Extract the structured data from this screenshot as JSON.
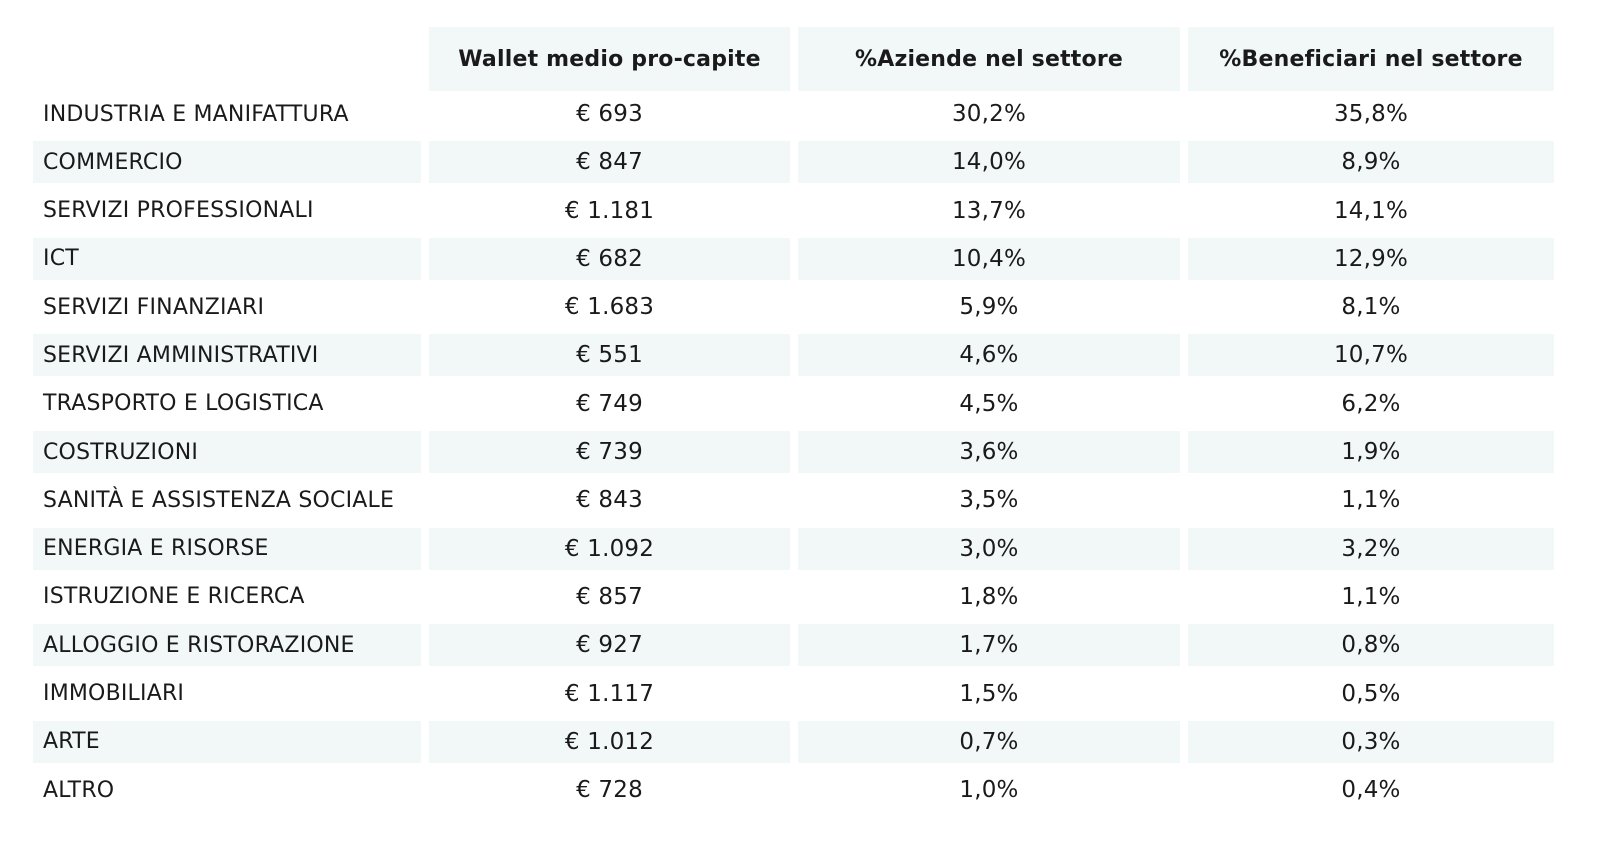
{
  "table": {
    "headers": [
      "",
      "Wallet medio pro-capite",
      "%Aziende nel settore",
      "%Beneficiari nel settore"
    ],
    "rows": [
      {
        "settore": "INDUSTRIA E MANIFATTURA",
        "wallet": "€ 693",
        "aziende": "30,2%",
        "beneficiari": "35,8%"
      },
      {
        "settore": "COMMERCIO",
        "wallet": "€ 847",
        "aziende": "14,0%",
        "beneficiari": "8,9%"
      },
      {
        "settore": "SERVIZI PROFESSIONALI",
        "wallet": "€ 1.181",
        "aziende": "13,7%",
        "beneficiari": "14,1%"
      },
      {
        "settore": "ICT",
        "wallet": "€ 682",
        "aziende": "10,4%",
        "beneficiari": "12,9%"
      },
      {
        "settore": "SERVIZI FINANZIARI",
        "wallet": "€ 1.683",
        "aziende": "5,9%",
        "beneficiari": "8,1%"
      },
      {
        "settore": "SERVIZI AMMINISTRATIVI",
        "wallet": "€ 551",
        "aziende": "4,6%",
        "beneficiari": "10,7%"
      },
      {
        "settore": "TRASPORTO E LOGISTICA",
        "wallet": "€ 749",
        "aziende": "4,5%",
        "beneficiari": "6,2%"
      },
      {
        "settore": "COSTRUZIONI",
        "wallet": "€ 739",
        "aziende": "3,6%",
        "beneficiari": "1,9%"
      },
      {
        "settore": "SANITÀ E ASSISTENZA SOCIALE",
        "wallet": "€ 843",
        "aziende": "3,5%",
        "beneficiari": "1,1%"
      },
      {
        "settore": "ENERGIA E RISORSE",
        "wallet": "€ 1.092",
        "aziende": "3,0%",
        "beneficiari": "3,2%"
      },
      {
        "settore": "ISTRUZIONE E RICERCA",
        "wallet": "€ 857",
        "aziende": "1,8%",
        "beneficiari": "1,1%"
      },
      {
        "settore": "ALLOGGIO E RISTORAZIONE",
        "wallet": "€ 927",
        "aziende": "1,7%",
        "beneficiari": "0,8%"
      },
      {
        "settore": "IMMOBILIARI",
        "wallet": "€ 1.117",
        "aziende": "1,5%",
        "beneficiari": "0,5%"
      },
      {
        "settore": "ARTE",
        "wallet": "€ 1.012",
        "aziende": "0,7%",
        "beneficiari": "0,3%"
      },
      {
        "settore": "ALTRO",
        "wallet": "€ 728",
        "aziende": "1,0%",
        "beneficiari": "0,4%"
      }
    ]
  },
  "colors": {
    "header_bg": "#f2f7f7",
    "stripe_bg": "#f2f7f7",
    "text": "#1a1a1a"
  }
}
